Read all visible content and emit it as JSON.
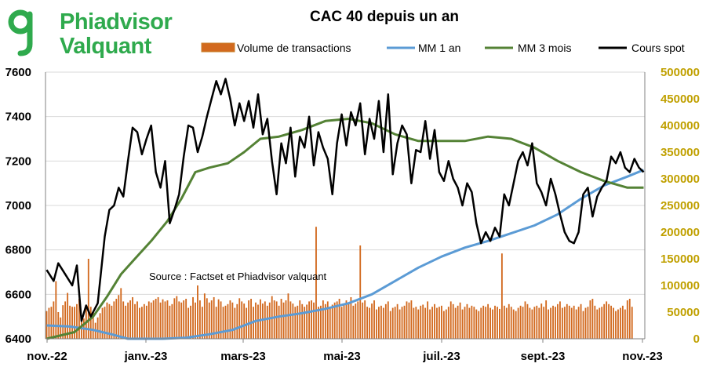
{
  "logo": {
    "line1": "Phiadvisor",
    "line2": "Valquant",
    "color": "#2faa4d"
  },
  "chart_data": {
    "type": "line",
    "title": "CAC 40 depuis un an",
    "annotation": "Source : Factset et Phiadvisor valquant",
    "x_ticks": [
      "nov.-22",
      "janv.-23",
      "mars-23",
      "mai-23",
      "juil.-23",
      "sept.-23",
      "nov.-23"
    ],
    "y_left": {
      "min": 6400,
      "max": 7600,
      "ticks": [
        6400,
        6600,
        6800,
        7000,
        7200,
        7400,
        7600
      ],
      "color": "#000000"
    },
    "y_right": {
      "min": 0,
      "max": 500000,
      "ticks": [
        0,
        50000,
        100000,
        150000,
        200000,
        250000,
        300000,
        350000,
        400000,
        450000,
        500000
      ],
      "color": "#c0a000"
    },
    "grid": true,
    "legend_position": "top",
    "series": [
      {
        "name": "Volume de transactions",
        "type": "bar",
        "axis": "right",
        "color": "#d2691e",
        "values": [
          52000,
          58000,
          60000,
          70000,
          108000,
          50000,
          40000,
          63000,
          70000,
          86000,
          62000,
          60000,
          60000,
          65000,
          75000,
          42000,
          38000,
          60000,
          150000,
          60000,
          50000,
          30000,
          40000,
          48000,
          58000,
          60000,
          68000,
          65000,
          62000,
          70000,
          75000,
          82000,
          95000,
          70000,
          62000,
          68000,
          72000,
          78000,
          65000,
          70000,
          58000,
          60000,
          65000,
          62000,
          70000,
          68000,
          72000,
          75000,
          78000,
          68000,
          74000,
          70000,
          72000,
          62000,
          65000,
          76000,
          80000,
          70000,
          68000,
          72000,
          75000,
          58000,
          62000,
          78000,
          68000,
          100000,
          72000,
          60000,
          85000,
          76000,
          68000,
          72000,
          78000,
          60000,
          74000,
          70000,
          60000,
          62000,
          65000,
          72000,
          68000,
          58000,
          65000,
          76000,
          70000,
          66000,
          58000,
          72000,
          75000,
          60000,
          68000,
          64000,
          74000,
          66000,
          70000,
          62000,
          68000,
          80000,
          72000,
          70000,
          62000,
          75000,
          68000,
          72000,
          85000,
          70000,
          66000,
          60000,
          62000,
          72000,
          65000,
          60000,
          64000,
          70000,
          72000,
          68000,
          210000,
          60000,
          62000,
          72000,
          65000,
          70000,
          58000,
          64000,
          68000,
          70000,
          75000,
          60000,
          65000,
          72000,
          68000,
          78000,
          62000,
          66000,
          70000,
          175000,
          68000,
          72000,
          60000,
          58000,
          66000,
          72000,
          55000,
          60000,
          62000,
          58000,
          65000,
          70000,
          52000,
          58000,
          60000,
          65000,
          55000,
          60000,
          62000,
          70000,
          68000,
          72000,
          58000,
          60000,
          55000,
          62000,
          64000,
          58000,
          70000,
          55000,
          60000,
          65000,
          58000,
          60000,
          62000,
          52000,
          55000,
          60000,
          70000,
          65000,
          58000,
          62000,
          68000,
          55000,
          60000,
          65000,
          58000,
          62000,
          60000,
          55000,
          52000,
          58000,
          62000,
          60000,
          65000,
          58000,
          55000,
          62000,
          60000,
          56000,
          160000,
          62000,
          58000,
          65000,
          60000,
          55000,
          52000,
          58000,
          62000,
          60000,
          70000,
          65000,
          58000,
          55000,
          60000,
          62000,
          58000,
          66000,
          60000,
          72000,
          55000,
          58000,
          62000,
          60000,
          65000,
          70000,
          58000,
          60000,
          65000,
          62000,
          58000,
          62000,
          55000,
          60000,
          65000,
          52000,
          58000,
          60000,
          72000,
          75000,
          62000,
          55000,
          58000,
          60000,
          65000,
          70000,
          65000,
          62000,
          58000,
          52000,
          55000,
          58000,
          62000,
          55000,
          72000,
          75000,
          60000
        ]
      },
      {
        "name": "MM 1 an",
        "type": "line",
        "axis": "left",
        "color": "#5b9bd5",
        "x": [
          0,
          10,
          20,
          28,
          35,
          42,
          50,
          60,
          70,
          80,
          90,
          100,
          110,
          120,
          130,
          140,
          150,
          160,
          170,
          180,
          190,
          200,
          210,
          220,
          230,
          240,
          250,
          257
        ],
        "values": [
          6460,
          6455,
          6440,
          6420,
          6400,
          6400,
          6400,
          6405,
          6420,
          6440,
          6480,
          6500,
          6515,
          6535,
          6560,
          6600,
          6660,
          6720,
          6770,
          6810,
          6840,
          6875,
          6910,
          6960,
          7030,
          7090,
          7130,
          7160
        ]
      },
      {
        "name": "MM 3 mois",
        "type": "line",
        "axis": "left",
        "color": "#548235",
        "x": [
          0,
          12,
          20,
          26,
          32,
          38,
          45,
          52,
          58,
          64,
          70,
          78,
          85,
          92,
          100,
          110,
          120,
          130,
          140,
          150,
          160,
          170,
          180,
          190,
          200,
          210,
          220,
          230,
          240,
          250,
          257
        ],
        "values": [
          6400,
          6430,
          6500,
          6590,
          6690,
          6760,
          6840,
          6930,
          7030,
          7150,
          7170,
          7190,
          7240,
          7300,
          7310,
          7340,
          7380,
          7390,
          7370,
          7320,
          7290,
          7290,
          7290,
          7310,
          7300,
          7260,
          7200,
          7150,
          7110,
          7080,
          7080
        ]
      },
      {
        "name": "Cours spot",
        "type": "line",
        "axis": "left",
        "color": "#000000",
        "x": [
          0,
          3,
          5,
          8,
          11,
          13,
          15,
          17,
          19,
          22,
          25,
          27,
          29,
          31,
          33,
          35,
          37,
          39,
          41,
          43,
          45,
          47,
          49,
          51,
          53,
          55,
          57,
          59,
          61,
          63,
          65,
          67,
          69,
          71,
          73,
          75,
          77,
          79,
          81,
          83,
          85,
          87,
          89,
          91,
          93,
          95,
          97,
          99,
          101,
          103,
          105,
          107,
          109,
          111,
          113,
          115,
          117,
          119,
          121,
          123,
          125,
          127,
          129,
          131,
          133,
          135,
          137,
          139,
          141,
          143,
          145,
          147,
          149,
          151,
          153,
          155,
          157,
          159,
          161,
          163,
          165,
          167,
          169,
          171,
          173,
          175,
          177,
          179,
          181,
          183,
          185,
          187,
          189,
          191,
          193,
          195,
          197,
          199,
          201,
          203,
          205,
          207,
          209,
          211,
          213,
          215,
          217,
          219,
          221,
          223,
          225,
          227,
          229,
          231,
          233,
          235,
          237,
          239,
          241,
          243,
          245,
          247,
          249,
          251,
          253,
          255,
          257
        ],
        "values": [
          6710,
          6660,
          6740,
          6690,
          6640,
          6730,
          6480,
          6550,
          6500,
          6560,
          6860,
          6980,
          7000,
          7080,
          7040,
          7200,
          7350,
          7330,
          7230,
          7300,
          7360,
          7150,
          7080,
          7200,
          6920,
          6980,
          7050,
          7220,
          7360,
          7350,
          7240,
          7310,
          7400,
          7480,
          7560,
          7500,
          7570,
          7480,
          7360,
          7460,
          7380,
          7470,
          7350,
          7500,
          7320,
          7390,
          7200,
          7050,
          7280,
          7190,
          7350,
          7130,
          7310,
          7260,
          7400,
          7180,
          7330,
          7260,
          7210,
          7050,
          7280,
          7410,
          7270,
          7420,
          7360,
          7460,
          7230,
          7390,
          7300,
          7470,
          7240,
          7500,
          7140,
          7280,
          7360,
          7320,
          7100,
          7250,
          7240,
          7380,
          7210,
          7340,
          7150,
          7110,
          7200,
          7120,
          7080,
          7000,
          7100,
          7060,
          6920,
          6830,
          6880,
          6840,
          6900,
          6860,
          7050,
          7000,
          7100,
          7200,
          7240,
          7180,
          7280,
          7100,
          7060,
          7000,
          7120,
          7050,
          6960,
          6880,
          6840,
          6830,
          6880,
          7050,
          7080,
          6950,
          7040,
          7080,
          7110,
          7220,
          7190,
          7240,
          7170,
          7150,
          7210,
          7170,
          7150
        ]
      }
    ]
  }
}
